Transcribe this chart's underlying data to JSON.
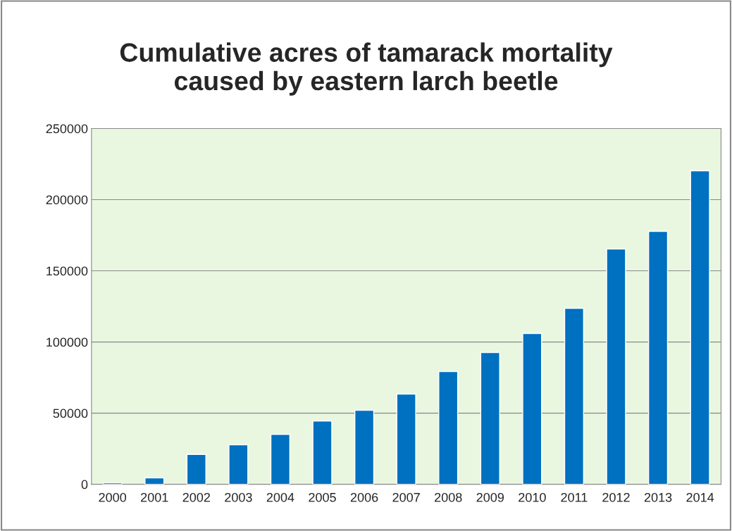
{
  "chart_data": {
    "type": "bar",
    "title": "Cumulative acres of tamarack mortality\ncaused by eastern larch beetle",
    "categories": [
      "2000",
      "2001",
      "2002",
      "2003",
      "2004",
      "2005",
      "2006",
      "2007",
      "2008",
      "2009",
      "2010",
      "2011",
      "2012",
      "2013",
      "2014"
    ],
    "values": [
      1000,
      4500,
      21000,
      27700,
      35100,
      44500,
      52000,
      63400,
      79200,
      92600,
      106000,
      123700,
      165300,
      177700,
      220300
    ],
    "color": "#0070c0",
    "ylim": [
      0,
      250000
    ],
    "yticks": [
      0,
      50000,
      100000,
      150000,
      200000,
      250000
    ],
    "grid": "y"
  }
}
